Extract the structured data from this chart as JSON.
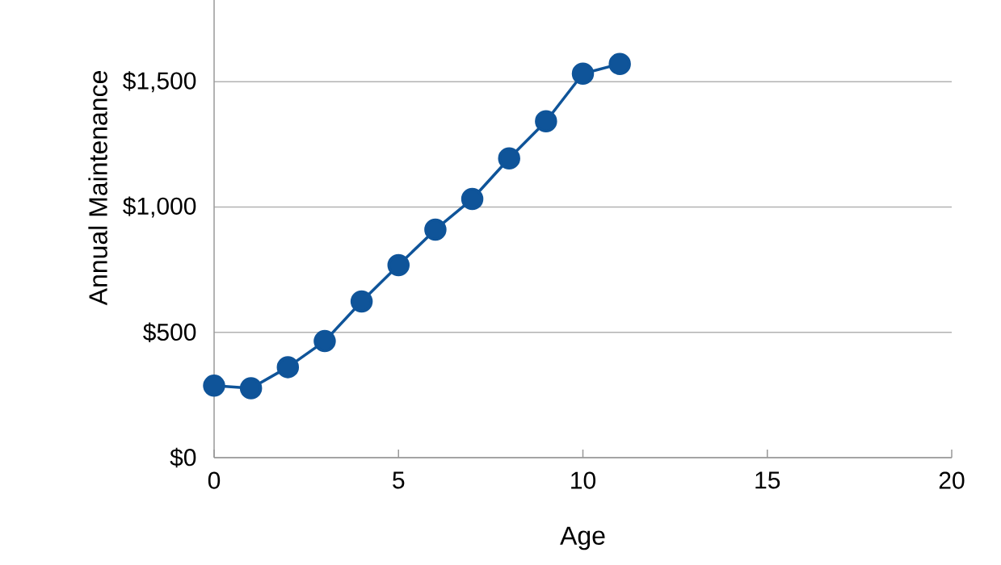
{
  "chart_data": {
    "type": "line",
    "xlabel": "Age",
    "ylabel": "Annual Maintenance",
    "x": [
      0,
      1,
      2,
      3,
      4,
      5,
      6,
      7,
      8,
      9,
      10,
      11
    ],
    "series": [
      {
        "color": "#0f5499",
        "values": [
          287,
          277,
          361,
          465,
          623,
          768,
          910,
          1032,
          1194,
          1342,
          1532,
          1571
        ]
      }
    ],
    "xlim": [
      0,
      20
    ],
    "xticks": [
      0,
      5,
      10,
      15,
      20
    ],
    "ylim": [
      0,
      1826
    ],
    "yticks": [
      {
        "value": 0,
        "label": "$0"
      },
      {
        "value": 500,
        "label": "$500"
      },
      {
        "value": 1000,
        "label": "$1,000"
      },
      {
        "value": 1500,
        "label": "$1,500"
      }
    ],
    "grid": "y",
    "marker": "circle",
    "line_style": "solid"
  }
}
